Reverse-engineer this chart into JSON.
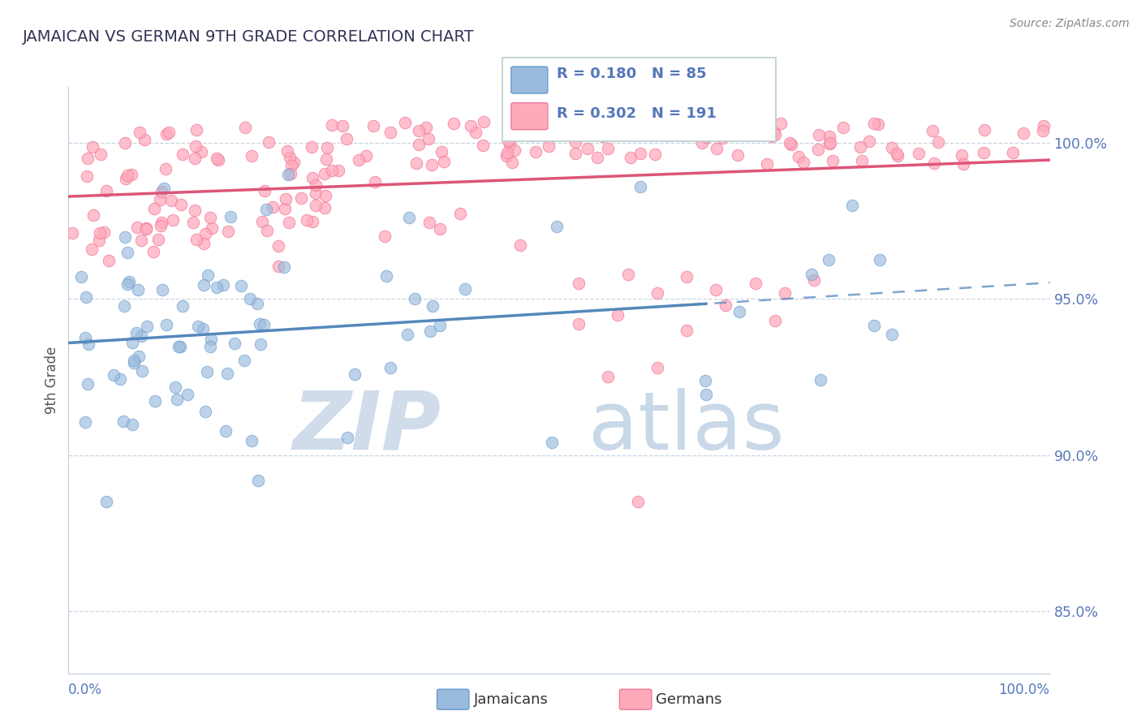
{
  "title": "JAMAICAN VS GERMAN 9TH GRADE CORRELATION CHART",
  "source": "Source: ZipAtlas.com",
  "ylabel": "9th Grade",
  "x_range": [
    0.0,
    1.0
  ],
  "y_range": [
    83.0,
    101.8
  ],
  "jamaican_R": 0.18,
  "jamaican_N": 85,
  "german_R": 0.302,
  "german_N": 191,
  "blue_scatter_color": "#99BBDD",
  "blue_edge_color": "#6699CC",
  "pink_scatter_color": "#FFAABB",
  "pink_edge_color": "#EE7799",
  "blue_line_color": "#5588BB",
  "pink_line_color": "#DD5577",
  "axis_label_color": "#5577BB",
  "title_color": "#333355",
  "grid_color": "#BBCCDD",
  "watermark_zip_color": "#D0DCEA",
  "watermark_atlas_color": "#C8D8E8",
  "legend_border_color": "#BBCCCC",
  "ytick_vals": [
    85.0,
    90.0,
    95.0,
    100.0
  ],
  "ytick_labels": [
    "85.0%",
    "90.0%",
    "95.0%",
    "100.0%"
  ],
  "legend_label_jamaicans": "Jamaicans",
  "legend_label_germans": "Germans"
}
